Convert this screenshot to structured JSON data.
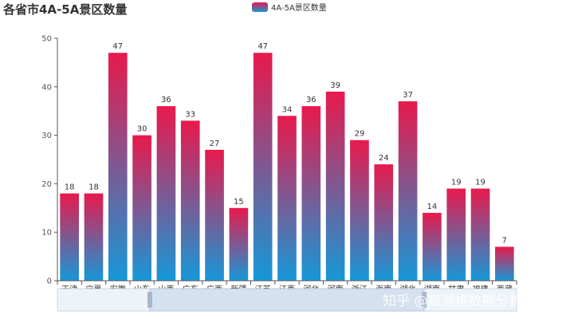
{
  "watermark": "知乎 @高道格数据分析",
  "chart_data": {
    "type": "bar",
    "title": "各省市4A-5A景区数量",
    "legend": {
      "position": "top-center",
      "entries": [
        "4A-5A景区数量"
      ]
    },
    "categories": [
      "天津",
      "宁夏",
      "安徽",
      "山东",
      "山西",
      "广东",
      "广西",
      "新疆",
      "江苏",
      "江西",
      "河北",
      "河南",
      "浙江",
      "海南",
      "湖北",
      "湖南",
      "甘肃",
      "福建",
      "西藏"
    ],
    "series": [
      {
        "name": "4A-5A景区数量",
        "values": [
          18,
          18,
          47,
          30,
          36,
          33,
          27,
          15,
          47,
          34,
          36,
          39,
          29,
          24,
          37,
          14,
          19,
          19,
          7
        ]
      }
    ],
    "ylim": [
      0,
      50
    ],
    "yticks": [
      0,
      10,
      20,
      30,
      40,
      50
    ],
    "grid": false,
    "data_labels": true,
    "colors": {
      "bar_top": "#e8194c",
      "bar_bottom": "#1598d8",
      "axis": "#555555",
      "slider_fill": "#d6e1f0",
      "slider_bg": "#eef3f9"
    },
    "datazoom_slider": true
  }
}
